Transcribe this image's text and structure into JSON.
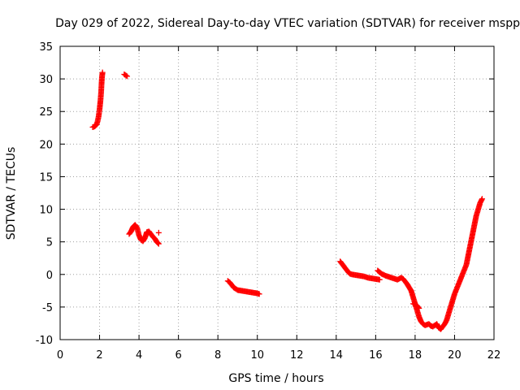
{
  "chart_data": {
    "type": "scatter",
    "title": "Day 029 of 2022, Sidereal Day-to-day VTEC variation (SDTVAR) for receiver mspp",
    "xlabel": "GPS time / hours",
    "ylabel": "SDTVAR / TECUs",
    "xlim": [
      0,
      22
    ],
    "ylim": [
      -10,
      35
    ],
    "xticks": [
      0,
      2,
      4,
      6,
      8,
      10,
      12,
      14,
      16,
      18,
      20,
      22
    ],
    "yticks": [
      -10,
      -5,
      0,
      5,
      10,
      15,
      20,
      25,
      30,
      35
    ],
    "grid": true,
    "marker": "+",
    "series": [
      {
        "name": "SDTVAR",
        "color": "#ff0000",
        "segments": [
          {
            "x": [
              1.65,
              1.75,
              1.85,
              1.9,
              1.95,
              2.0,
              2.05,
              2.08,
              2.1,
              2.12,
              2.15
            ],
            "y": [
              22.6,
              22.7,
              23.0,
              23.5,
              24.2,
              25.3,
              26.8,
              28.0,
              29.2,
              30.2,
              31.0
            ]
          },
          {
            "x": [
              3.25,
              3.3,
              3.35,
              3.4
            ],
            "y": [
              30.7,
              30.6,
              30.5,
              30.4
            ]
          },
          {
            "x": [
              3.5,
              3.6,
              3.7,
              3.8,
              3.9,
              4.0,
              4.1,
              4.2,
              4.3,
              4.4,
              4.5,
              4.6,
              4.7,
              4.8,
              4.9,
              5.0
            ],
            "y": [
              6.2,
              6.6,
              7.3,
              7.6,
              7.2,
              6.0,
              5.3,
              5.1,
              5.6,
              6.5,
              6.6,
              6.2,
              5.8,
              5.5,
              5.0,
              4.7
            ]
          },
          {
            "x": [
              5.0
            ],
            "y": [
              6.4
            ]
          },
          {
            "x": [
              8.5,
              8.6,
              8.7,
              8.8,
              8.9,
              9.0,
              9.2,
              9.4,
              9.6,
              9.8,
              10.0,
              10.1
            ],
            "y": [
              -1.0,
              -1.2,
              -1.6,
              -2.0,
              -2.2,
              -2.4,
              -2.5,
              -2.6,
              -2.7,
              -2.8,
              -2.9,
              -3.0
            ]
          },
          {
            "x": [
              14.2,
              14.3,
              14.4,
              14.5,
              14.6,
              14.7,
              14.8,
              15.0,
              15.2,
              15.4,
              15.6,
              15.8,
              16.0,
              16.2
            ],
            "y": [
              2.0,
              1.6,
              1.2,
              0.8,
              0.4,
              0.1,
              0.0,
              -0.1,
              -0.2,
              -0.3,
              -0.5,
              -0.6,
              -0.7,
              -0.8
            ]
          },
          {
            "x": [
              16.1,
              16.3,
              16.5,
              16.7,
              16.9,
              17.1,
              17.3,
              17.4,
              17.6,
              17.8,
              17.9,
              18.0,
              18.1,
              18.2,
              18.3,
              18.4,
              18.5,
              18.6,
              18.7,
              18.8,
              18.9,
              19.0,
              19.1,
              19.2,
              19.3,
              19.4,
              19.5,
              19.6,
              19.7,
              19.8,
              19.9,
              20.0,
              20.2,
              20.4,
              20.6,
              20.7,
              20.8,
              20.9,
              21.0,
              21.1,
              21.2,
              21.3,
              21.4
            ],
            "y": [
              0.6,
              0.1,
              -0.2,
              -0.4,
              -0.6,
              -0.8,
              -0.5,
              -0.7,
              -1.5,
              -2.5,
              -3.5,
              -4.5,
              -5.5,
              -6.5,
              -7.2,
              -7.6,
              -7.8,
              -7.7,
              -7.6,
              -7.9,
              -8.0,
              -7.8,
              -7.6,
              -8.2,
              -8.4,
              -8.0,
              -7.6,
              -7.0,
              -6.0,
              -5.0,
              -4.0,
              -3.0,
              -1.5,
              0.0,
              1.5,
              3.0,
              4.5,
              6.0,
              7.5,
              9.0,
              10.0,
              11.0,
              11.6
            ]
          },
          {
            "x": [
              17.9,
              18.0,
              18.1,
              18.2
            ],
            "y": [
              -4.5,
              -4.6,
              -4.8,
              -5.2
            ]
          }
        ]
      }
    ]
  }
}
